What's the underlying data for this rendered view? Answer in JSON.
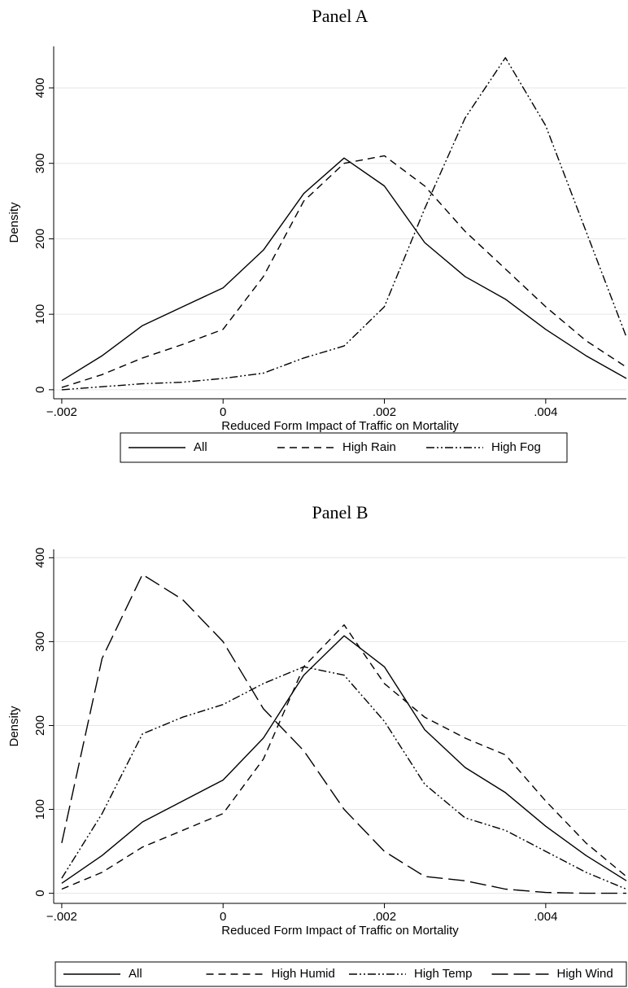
{
  "chart_data": [
    {
      "type": "line",
      "title": "Panel A",
      "x_label": "Reduced Form Impact of Traffic on Mortality",
      "y_label": "Density",
      "x": [
        -0.002,
        -0.0015,
        -0.001,
        -0.0005,
        0,
        0.0005,
        0.001,
        0.0015,
        0.002,
        0.0025,
        0.003,
        0.0035,
        0.004,
        0.0045,
        0.005
      ],
      "series": [
        {
          "name": "All",
          "color": "#000000",
          "dash": "solid",
          "values": [
            12,
            45,
            85,
            110,
            135,
            185,
            260,
            307,
            270,
            195,
            150,
            120,
            80,
            45,
            15
          ]
        },
        {
          "name": "High Rain",
          "color": "#000000",
          "dash": "dashed",
          "values": [
            3,
            20,
            42,
            60,
            80,
            150,
            250,
            300,
            310,
            270,
            210,
            160,
            110,
            65,
            30
          ]
        },
        {
          "name": "High Fog",
          "color": "#000000",
          "dash": "dash-dot",
          "values": [
            0,
            4,
            8,
            10,
            15,
            22,
            42,
            58,
            110,
            240,
            360,
            440,
            350,
            210,
            70
          ]
        }
      ],
      "xlim": [
        -0.0021,
        0.005
      ],
      "ylim": [
        -12,
        455
      ],
      "xticks": [
        {
          "value": -0.002,
          "label": "−.002"
        },
        0,
        {
          "value": 0.002,
          "label": ".002"
        },
        {
          "value": 0.004,
          "label": ".004"
        }
      ],
      "yticks": [
        0,
        100,
        200,
        300,
        400
      ],
      "grid": true,
      "legend": "bottom"
    },
    {
      "type": "line",
      "title": "Panel B",
      "x_label": "Reduced Form Impact of Traffic on Mortality",
      "y_label": "Density",
      "x": [
        -0.002,
        -0.0015,
        -0.001,
        -0.0005,
        0,
        0.0005,
        0.001,
        0.0015,
        0.002,
        0.0025,
        0.003,
        0.0035,
        0.004,
        0.0045,
        0.005
      ],
      "series": [
        {
          "name": "All",
          "color": "#000000",
          "dash": "solid",
          "values": [
            12,
            45,
            85,
            110,
            135,
            185,
            260,
            307,
            270,
            195,
            150,
            120,
            80,
            45,
            15
          ]
        },
        {
          "name": "High Humid",
          "color": "#000000",
          "dash": "dashed",
          "values": [
            5,
            25,
            55,
            75,
            95,
            160,
            270,
            320,
            250,
            210,
            185,
            165,
            110,
            60,
            20
          ]
        },
        {
          "name": "High Temp",
          "color": "#000000",
          "dash": "dash-dot",
          "values": [
            18,
            95,
            190,
            210,
            225,
            250,
            270,
            260,
            205,
            130,
            90,
            75,
            50,
            25,
            5
          ]
        },
        {
          "name": "High Wind",
          "color": "#000000",
          "dash": "long-dash",
          "values": [
            60,
            280,
            380,
            350,
            300,
            220,
            170,
            100,
            50,
            20,
            15,
            5,
            1,
            0,
            0
          ]
        }
      ],
      "xlim": [
        -0.0021,
        0.005
      ],
      "ylim": [
        -12,
        410
      ],
      "xticks": [
        {
          "value": -0.002,
          "label": "−.002"
        },
        0,
        {
          "value": 0.002,
          "label": ".002"
        },
        {
          "value": 0.004,
          "label": ".004"
        }
      ],
      "yticks": [
        0,
        100,
        200,
        300,
        400
      ],
      "grid": true,
      "legend": "bottom"
    }
  ]
}
